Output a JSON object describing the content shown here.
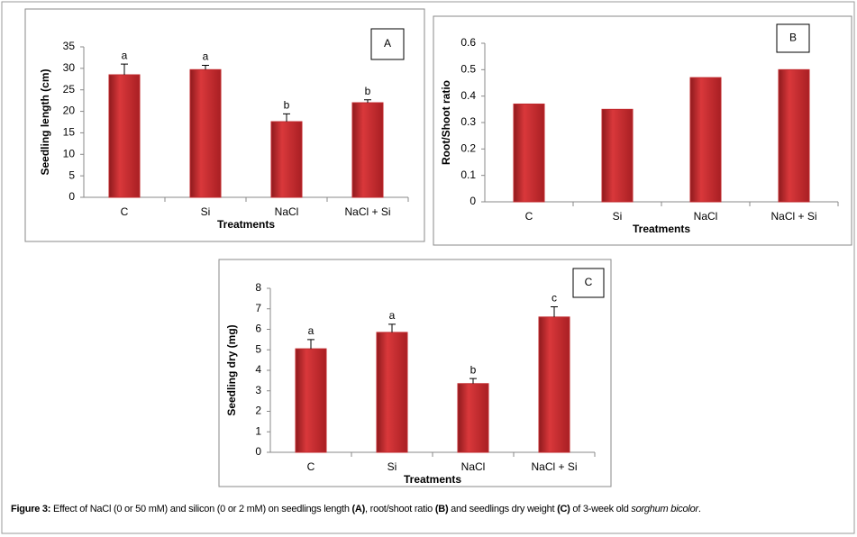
{
  "chart_data": [
    {
      "type": "bar",
      "panel_label": "A",
      "ylabel": "Seedling length (cm)",
      "xlabel": "Treatments",
      "categories": [
        "C",
        "Si",
        "NaCl",
        "NaCl + Si"
      ],
      "values": [
        28.5,
        29.7,
        17.6,
        22.0
      ],
      "errors": [
        2.5,
        1.0,
        1.8,
        0.7
      ],
      "annotations": [
        "a",
        "a",
        "b",
        "b"
      ],
      "color": "#c0282c",
      "ylim": [
        0,
        35
      ],
      "yticks": [
        0,
        5,
        10,
        15,
        20,
        25,
        30,
        35
      ]
    },
    {
      "type": "bar",
      "panel_label": "B",
      "ylabel": "Root/Shoot ratio",
      "xlabel": "Treatments",
      "categories": [
        "C",
        "Si",
        "NaCl",
        "NaCl + Si"
      ],
      "values": [
        0.37,
        0.35,
        0.47,
        0.5
      ],
      "color": "#c0282c",
      "ylim": [
        0,
        0.6
      ],
      "yticks": [
        0,
        0.1,
        0.2,
        0.3,
        0.4,
        0.5,
        0.6
      ]
    },
    {
      "type": "bar",
      "panel_label": "C",
      "ylabel": "Seedling dry (mg)",
      "xlabel": "Treatments",
      "categories": [
        "C",
        "Si",
        "NaCl",
        "NaCl + Si"
      ],
      "values": [
        5.05,
        5.85,
        3.35,
        6.6
      ],
      "errors": [
        0.45,
        0.4,
        0.25,
        0.5
      ],
      "annotations": [
        "a",
        "a",
        "b",
        "c"
      ],
      "color": "#c0282c",
      "ylim": [
        0,
        8
      ],
      "yticks": [
        0,
        1,
        2,
        3,
        4,
        5,
        6,
        7,
        8
      ]
    }
  ],
  "caption": [
    "Figure 3:",
    " Effect of NaCl (0 or 50 mM) and silicon (0 or 2 mM) on seedlings length ",
    "(A)",
    ", root/shoot ratio ",
    "(B)",
    " and seedlings dry weight ",
    "(C)",
    " of 3-week old ",
    "sorghum bicolor",
    "."
  ]
}
